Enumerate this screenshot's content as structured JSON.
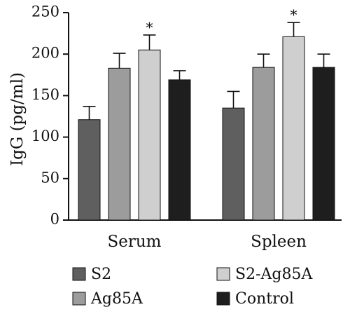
{
  "chart_data": {
    "type": "bar",
    "title": "",
    "xlabel": "",
    "ylabel": "IgG (pg/ml)",
    "ylim": [
      0,
      250
    ],
    "yticks": [
      0,
      50,
      100,
      150,
      200,
      250
    ],
    "categories": [
      "Serum",
      "Spleen"
    ],
    "series": [
      {
        "name": "S2",
        "color": "#5f5f5f",
        "values": [
          121,
          135
        ],
        "errors": [
          16,
          20
        ],
        "annotations": [
          "",
          ""
        ]
      },
      {
        "name": "Ag85A",
        "color": "#9c9c9c",
        "values": [
          183,
          184
        ],
        "errors": [
          18,
          16
        ],
        "annotations": [
          "",
          ""
        ]
      },
      {
        "name": "S2-Ag85A",
        "color": "#cfcfcf",
        "values": [
          205,
          221
        ],
        "errors": [
          18,
          17
        ],
        "annotations": [
          "*",
          "*"
        ]
      },
      {
        "name": "Control",
        "color": "#1e1e1e",
        "values": [
          169,
          184
        ],
        "errors": [
          11,
          16
        ],
        "annotations": [
          "",
          ""
        ]
      }
    ],
    "grid": false,
    "legend": "bottom"
  }
}
